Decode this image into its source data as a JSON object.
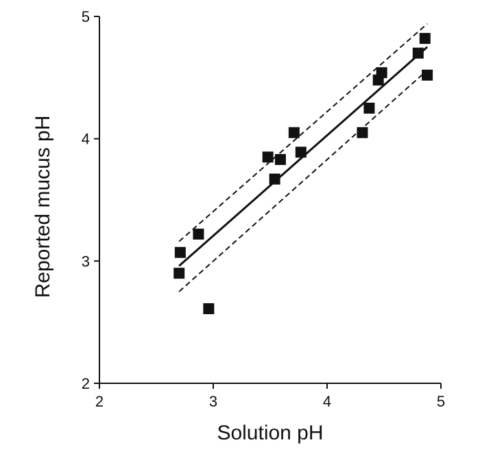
{
  "chart_data": {
    "type": "scatter",
    "title": "",
    "xlabel": "Solution pH",
    "ylabel": "Reported mucus pH",
    "xlim": [
      2,
      5
    ],
    "ylim": [
      2,
      5
    ],
    "xticks": [
      2,
      3,
      4,
      5
    ],
    "yticks": [
      2,
      3,
      4,
      5
    ],
    "grid": false,
    "points": [
      {
        "x": 2.7,
        "y": 2.9
      },
      {
        "x": 2.71,
        "y": 3.07
      },
      {
        "x": 2.87,
        "y": 3.22
      },
      {
        "x": 2.96,
        "y": 2.61
      },
      {
        "x": 3.48,
        "y": 3.85
      },
      {
        "x": 3.54,
        "y": 3.67
      },
      {
        "x": 3.59,
        "y": 3.83
      },
      {
        "x": 3.71,
        "y": 4.05
      },
      {
        "x": 3.77,
        "y": 3.89
      },
      {
        "x": 4.31,
        "y": 4.05
      },
      {
        "x": 4.37,
        "y": 4.25
      },
      {
        "x": 4.45,
        "y": 4.48
      },
      {
        "x": 4.48,
        "y": 4.54
      },
      {
        "x": 4.8,
        "y": 4.7
      },
      {
        "x": 4.86,
        "y": 4.82
      },
      {
        "x": 4.88,
        "y": 4.52
      }
    ],
    "fit_line": {
      "x": [
        2.7,
        4.88
      ],
      "y": [
        2.96,
        4.75
      ]
    },
    "ci_upper": {
      "x": [
        2.7,
        4.88
      ],
      "y": [
        3.16,
        4.94
      ]
    },
    "ci_lower": {
      "x": [
        2.7,
        4.88
      ],
      "y": [
        2.75,
        4.56
      ]
    }
  }
}
